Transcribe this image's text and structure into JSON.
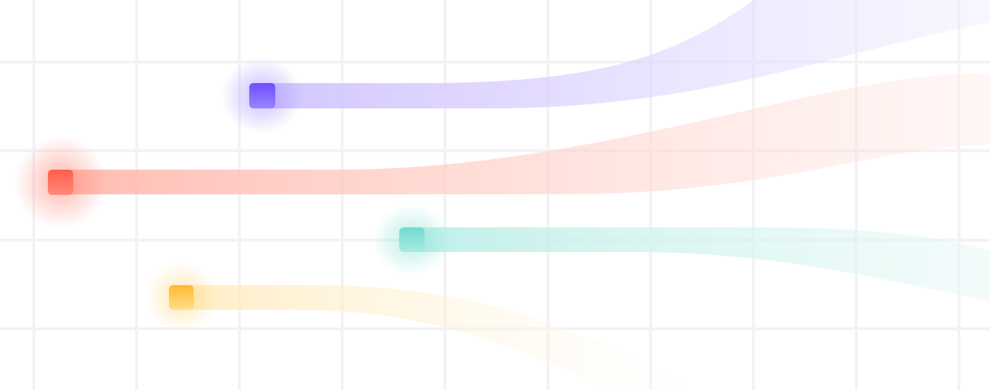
{
  "palette": {
    "background": "#ffffff",
    "grid": "#f3f3f5",
    "purple": "#7b5cff",
    "red": "#ff6b5a",
    "teal": "#7fe0d4",
    "amber": "#ffc23d"
  },
  "streams": [
    {
      "id": "purple",
      "color": "#7b5cff"
    },
    {
      "id": "red",
      "color": "#ff6b5a"
    },
    {
      "id": "teal",
      "color": "#7fe0d4"
    },
    {
      "id": "amber",
      "color": "#ffc23d"
    }
  ]
}
